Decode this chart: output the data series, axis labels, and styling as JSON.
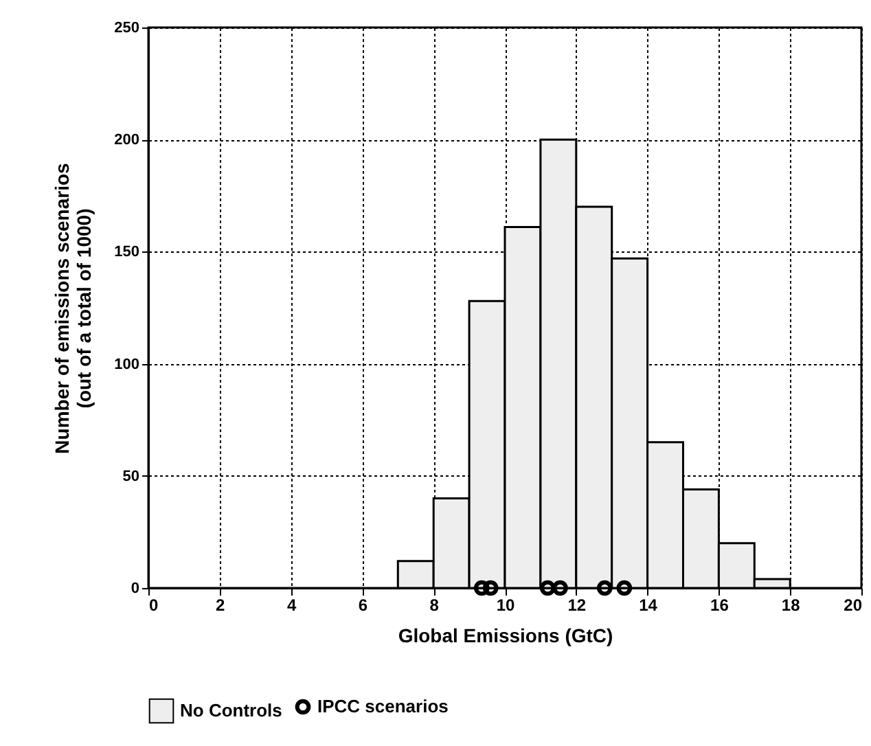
{
  "chart_data": {
    "type": "histogram",
    "xlabel": "Global Emissions (GtC)",
    "ylabel": "Number of emissions scenarios\n(out of a total of 1000)",
    "xlim": [
      0,
      20
    ],
    "xticks": [
      0,
      2,
      4,
      6,
      8,
      10,
      12,
      14,
      16,
      18,
      20
    ],
    "ylim": [
      0,
      250
    ],
    "yticks": [
      0,
      50,
      100,
      150,
      200,
      250
    ],
    "grid": true,
    "legend": "bottom",
    "series": [
      {
        "name": "IPCC scenarios",
        "type": "scatter",
        "color": "#000000",
        "marker": "circle",
        "x": [
          9.35,
          9.6,
          11.2,
          11.55,
          12.8,
          13.35
        ],
        "values": [
          0,
          0,
          0,
          0,
          0,
          0
        ]
      },
      {
        "name": "No Controls",
        "color": "#eeeeee",
        "bins": [
          7,
          8,
          9,
          10,
          11,
          12,
          13,
          14,
          15,
          16,
          17,
          18
        ],
        "values": [
          12,
          40,
          128,
          161,
          200,
          170,
          147,
          65,
          44,
          20,
          4
        ]
      }
    ]
  }
}
